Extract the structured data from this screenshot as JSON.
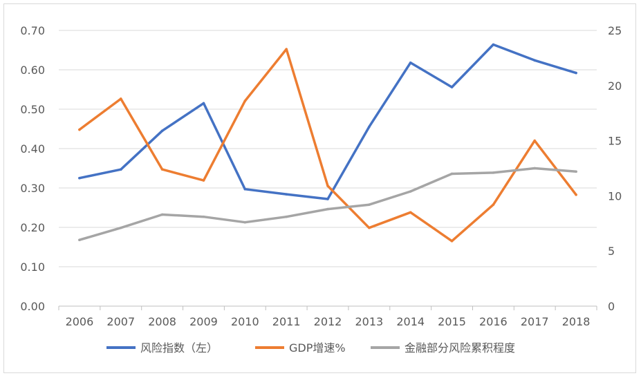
{
  "chart_data": {
    "type": "line",
    "title": "",
    "xlabel": "",
    "ylabel": "",
    "y2label": "",
    "categories": [
      "2006",
      "2007",
      "2008",
      "2009",
      "2010",
      "2011",
      "2012",
      "2013",
      "2014",
      "2015",
      "2016",
      "2017",
      "2018"
    ],
    "ylim": [
      0,
      0.7
    ],
    "yticks": [
      "0.00",
      "0.10",
      "0.20",
      "0.30",
      "0.40",
      "0.50",
      "0.60",
      "0.70"
    ],
    "y2lim": [
      0,
      25
    ],
    "y2ticks": [
      "0",
      "5",
      "10",
      "15",
      "20",
      "25"
    ],
    "grid": true,
    "legend_position": "bottom",
    "series": [
      {
        "name": "风险指数（左）",
        "axis": "left",
        "color": "#4472C4",
        "values": [
          0.325,
          0.347,
          0.445,
          0.515,
          0.297,
          0.284,
          0.272,
          0.455,
          0.618,
          0.556,
          0.664,
          0.624,
          0.592
        ]
      },
      {
        "name": "GDP增速%",
        "axis": "right",
        "color": "#ED7D31",
        "values": [
          16.0,
          18.8,
          12.4,
          11.4,
          18.6,
          23.3,
          10.9,
          7.1,
          8.5,
          5.9,
          9.2,
          15.0,
          10.1
        ]
      },
      {
        "name": "金融部分风险累积程度",
        "axis": "right",
        "color": "#A5A5A5",
        "values": [
          6.0,
          7.1,
          8.3,
          8.1,
          7.6,
          8.1,
          8.8,
          9.2,
          10.4,
          12.0,
          12.1,
          12.5,
          12.2
        ]
      }
    ]
  }
}
